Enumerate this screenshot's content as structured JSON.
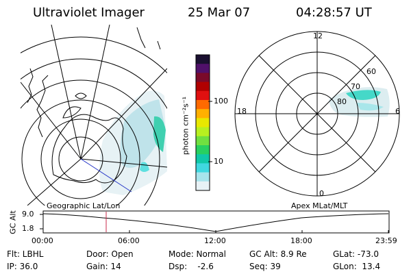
{
  "header": {
    "instrument": "Ultraviolet Imager",
    "date": "25 Mar 07",
    "time": "04:28:57 UT"
  },
  "colorbar": {
    "unit_label": "photon cm⁻²s⁻¹",
    "ticks": [
      "100",
      "10"
    ],
    "colors": [
      "#1a1030",
      "#50106a",
      "#7a0a2a",
      "#b00000",
      "#e01010",
      "#ff6a00",
      "#ffb000",
      "#e8e800",
      "#b8f020",
      "#70e040",
      "#28d060",
      "#10c8a8",
      "#40d8e0",
      "#a8e4ec",
      "#e8f2f6"
    ]
  },
  "geo_map": {
    "label": "Geographic Lat/Lon"
  },
  "polar_plot": {
    "label": "Apex MLat/MLT",
    "mlt_labels": [
      "12",
      "18",
      "6",
      "0"
    ],
    "lat_labels": [
      "60",
      "70",
      "80"
    ]
  },
  "timeline": {
    "ylabel": "GC Alt",
    "ytick_top": "9.0",
    "ytick_bottom": "1.8",
    "xticks": [
      "00:00",
      "06:00",
      "12:00",
      "18:00",
      "23:59"
    ],
    "marker_time": "04:28:57"
  },
  "info": {
    "flt": "Flt: LBHL",
    "ip": "IP: 36.0",
    "door": "Door: Open",
    "gain": "Gain: 14",
    "mode": "Mode: Normal",
    "dsp": "Dsp:    -2.6",
    "gcalt": "GC Alt: 8.9 Re",
    "seq": "Seq: 39",
    "glat": "GLat: -73.0",
    "glon": "GLon:  13.4"
  }
}
